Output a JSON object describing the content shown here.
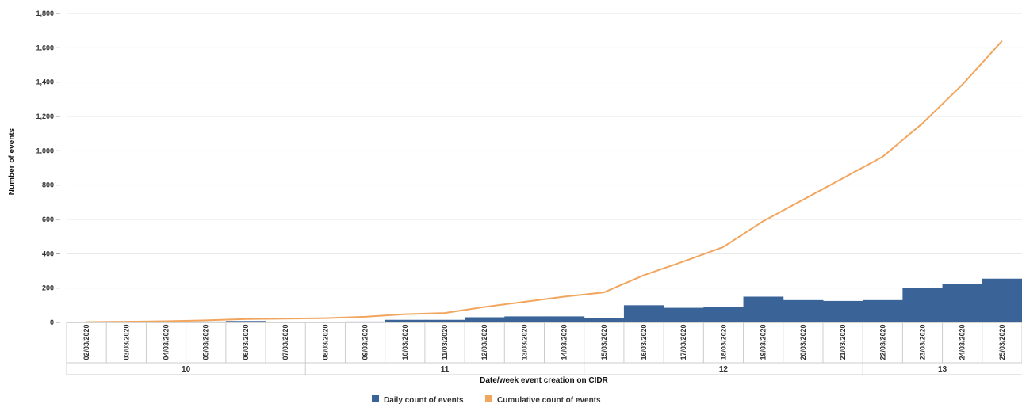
{
  "chart_data": {
    "type": "bar",
    "xlabel": "Date/week event creation on CIDR",
    "ylabel": "Number of events",
    "ylim": [
      0,
      1800
    ],
    "yticks": [
      "0",
      "200",
      "400",
      "600",
      "800",
      "1,000",
      "1,200",
      "1,400",
      "1,600",
      "1,800"
    ],
    "ytick_values": [
      0,
      200,
      400,
      600,
      800,
      1000,
      1200,
      1400,
      1600,
      1800
    ],
    "grid": true,
    "legend_position": "bottom-center",
    "categories": [
      "02/03/2020",
      "03/03/2020",
      "04/03/2020",
      "05/03/2020",
      "06/03/2020",
      "07/03/2020",
      "08/03/2020",
      "09/03/2020",
      "10/03/2020",
      "11/03/2020",
      "12/03/2020",
      "13/03/2020",
      "14/03/2020",
      "15/03/2020",
      "16/03/2020",
      "17/03/2020",
      "18/03/2020",
      "19/03/2020",
      "20/03/2020",
      "21/03/2020",
      "22/03/2020",
      "23/03/2020",
      "24/03/2020",
      "25/03/2020"
    ],
    "weeks": [
      {
        "label": "10",
        "start": 0,
        "end": 5
      },
      {
        "label": "11",
        "start": 6,
        "end": 12
      },
      {
        "label": "12",
        "start": 13,
        "end": 19
      },
      {
        "label": "13",
        "start": 20,
        "end": 23
      }
    ],
    "series": [
      {
        "name": "Daily count of events",
        "type": "bar",
        "color": "#3a6398",
        "values": [
          2,
          2,
          3,
          5,
          8,
          3,
          2,
          5,
          15,
          15,
          30,
          35,
          35,
          25,
          100,
          85,
          90,
          150,
          130,
          125,
          130,
          200,
          225,
          255
        ]
      },
      {
        "name": "Cumulative count of events",
        "type": "line",
        "color": "#f2a55c",
        "values": [
          2,
          4,
          7,
          12,
          20,
          22,
          25,
          33,
          48,
          55,
          90,
          120,
          150,
          175,
          275,
          355,
          440,
          590,
          715,
          840,
          965,
          1160,
          1385,
          1640
        ]
      }
    ]
  }
}
